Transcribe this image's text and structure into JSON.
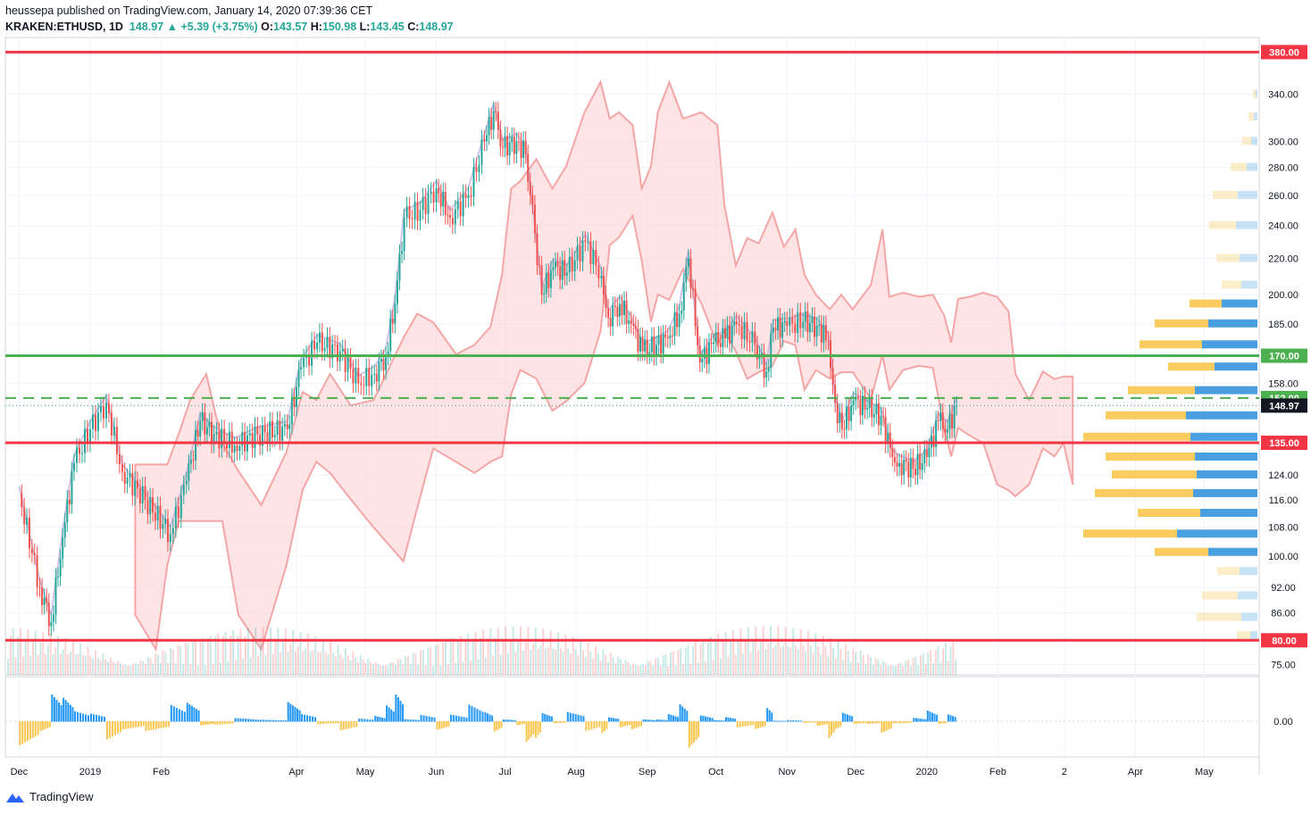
{
  "header": {
    "publisher_line": "heussepa published on TradingView.com, January 14, 2020 07:39:36 CET",
    "symbol": "KRAKEN:ETHUSD, 1D",
    "last": "148.97",
    "change": "+5.39 (+3.75%)",
    "o_label": "O:",
    "o": "143.57",
    "h_label": "H:",
    "h": "150.98",
    "l_label": "L:",
    "l": "143.45",
    "c_label": "C:",
    "c": "148.97"
  },
  "brand": "TradingView",
  "colors": {
    "up": "#26a69a",
    "down": "#ef5350",
    "resistance": "#f23645",
    "support_green": "#4caf50",
    "cloud_bear": "#ffcdd2",
    "cloud_bull": "#c8e6c9",
    "base_line": "#b39ddb",
    "vp_up": "#4a9fe0",
    "vp_down": "#f9c74f",
    "macd_up": "#2196f3",
    "macd_down": "#f9c74f",
    "price_tag_bg": "#131722"
  },
  "chart_data": {
    "type": "candlestick",
    "symbol": "KRAKEN:ETHUSD",
    "interval": "1D",
    "y_scale": "log",
    "ylim": [
      73,
      395
    ],
    "y_ticks": [
      "340.00",
      "300.00",
      "280.00",
      "260.00",
      "240.00",
      "220.00",
      "200.00",
      "185.00",
      "170.00",
      "158.00",
      "148.97",
      "135.00",
      "124.00",
      "116.00",
      "108.00",
      "100.00",
      "92.00",
      "86.00",
      "80.00",
      "75.00"
    ],
    "x_ticks": [
      "Dec",
      "2019",
      "Feb",
      "Apr",
      "May",
      "Jun",
      "Jul",
      "Aug",
      "Sep",
      "Oct",
      "Nov",
      "Dec",
      "2020",
      "Feb",
      "2",
      "Apr",
      "May"
    ],
    "horizontal_levels": [
      {
        "price": 380,
        "label": "380.00",
        "color": "#f23645",
        "style": "solid"
      },
      {
        "price": 170,
        "label": "170.00",
        "color": "#4caf50",
        "style": "solid"
      },
      {
        "price": 152,
        "label": "152.00",
        "color": "#4caf50",
        "style": "dashed"
      },
      {
        "price": 135,
        "label": "135.00",
        "color": "#f23645",
        "style": "solid"
      },
      {
        "price": 80,
        "label": "80.00",
        "color": "#f23645",
        "style": "solid"
      }
    ],
    "last_price": {
      "price": 148.97,
      "label": "148.97"
    },
    "closes": [
      {
        "date": "2018-12-01",
        "close": 118
      },
      {
        "date": "2018-12-10",
        "close": 92
      },
      {
        "date": "2018-12-15",
        "close": 84
      },
      {
        "date": "2018-12-20",
        "close": 105
      },
      {
        "date": "2018-12-25",
        "close": 128
      },
      {
        "date": "2019-01-01",
        "close": 140
      },
      {
        "date": "2019-01-08",
        "close": 150
      },
      {
        "date": "2019-01-15",
        "close": 125
      },
      {
        "date": "2019-01-25",
        "close": 116
      },
      {
        "date": "2019-02-05",
        "close": 106
      },
      {
        "date": "2019-02-12",
        "close": 122
      },
      {
        "date": "2019-02-18",
        "close": 143
      },
      {
        "date": "2019-02-24",
        "close": 138
      },
      {
        "date": "2019-03-05",
        "close": 134
      },
      {
        "date": "2019-03-15",
        "close": 138
      },
      {
        "date": "2019-03-28",
        "close": 140
      },
      {
        "date": "2019-04-03",
        "close": 165
      },
      {
        "date": "2019-04-10",
        "close": 176
      },
      {
        "date": "2019-04-20",
        "close": 172
      },
      {
        "date": "2019-04-28",
        "close": 158
      },
      {
        "date": "2019-05-05",
        "close": 162
      },
      {
        "date": "2019-05-10",
        "close": 170
      },
      {
        "date": "2019-05-14",
        "close": 195
      },
      {
        "date": "2019-05-18",
        "close": 245
      },
      {
        "date": "2019-05-25",
        "close": 250
      },
      {
        "date": "2019-06-01",
        "close": 265
      },
      {
        "date": "2019-06-07",
        "close": 245
      },
      {
        "date": "2019-06-15",
        "close": 260
      },
      {
        "date": "2019-06-22",
        "close": 300
      },
      {
        "date": "2019-06-26",
        "close": 325
      },
      {
        "date": "2019-06-30",
        "close": 295
      },
      {
        "date": "2019-07-06",
        "close": 300
      },
      {
        "date": "2019-07-10",
        "close": 290
      },
      {
        "date": "2019-07-14",
        "close": 235
      },
      {
        "date": "2019-07-17",
        "close": 200
      },
      {
        "date": "2019-07-22",
        "close": 215
      },
      {
        "date": "2019-07-28",
        "close": 212
      },
      {
        "date": "2019-08-05",
        "close": 230
      },
      {
        "date": "2019-08-12",
        "close": 210
      },
      {
        "date": "2019-08-15",
        "close": 188
      },
      {
        "date": "2019-08-20",
        "close": 195
      },
      {
        "date": "2019-08-25",
        "close": 185
      },
      {
        "date": "2019-08-30",
        "close": 172
      },
      {
        "date": "2019-09-05",
        "close": 175
      },
      {
        "date": "2019-09-10",
        "close": 178
      },
      {
        "date": "2019-09-15",
        "close": 190
      },
      {
        "date": "2019-09-19",
        "close": 220
      },
      {
        "date": "2019-09-24",
        "close": 167
      },
      {
        "date": "2019-09-30",
        "close": 176
      },
      {
        "date": "2019-10-05",
        "close": 178
      },
      {
        "date": "2019-10-10",
        "close": 185
      },
      {
        "date": "2019-10-18",
        "close": 175
      },
      {
        "date": "2019-10-23",
        "close": 163
      },
      {
        "date": "2019-10-26",
        "close": 183
      },
      {
        "date": "2019-11-01",
        "close": 184
      },
      {
        "date": "2019-11-08",
        "close": 186
      },
      {
        "date": "2019-11-14",
        "close": 184
      },
      {
        "date": "2019-11-19",
        "close": 177
      },
      {
        "date": "2019-11-22",
        "close": 150
      },
      {
        "date": "2019-11-25",
        "close": 140
      },
      {
        "date": "2019-11-30",
        "close": 151
      },
      {
        "date": "2019-12-06",
        "close": 148
      },
      {
        "date": "2019-12-12",
        "close": 145
      },
      {
        "date": "2019-12-17",
        "close": 130
      },
      {
        "date": "2019-12-20",
        "close": 128
      },
      {
        "date": "2019-12-26",
        "close": 126
      },
      {
        "date": "2020-01-01",
        "close": 130
      },
      {
        "date": "2020-01-06",
        "close": 143
      },
      {
        "date": "2020-01-10",
        "close": 140
      },
      {
        "date": "2020-01-14",
        "close": 148.97
      }
    ],
    "volume_profile": [
      {
        "price": 340,
        "up": 2,
        "down": 3
      },
      {
        "price": 320,
        "up": 4,
        "down": 6
      },
      {
        "price": 300,
        "up": 7,
        "down": 10
      },
      {
        "price": 280,
        "up": 12,
        "down": 18
      },
      {
        "price": 260,
        "up": 22,
        "down": 28
      },
      {
        "price": 240,
        "up": 24,
        "down": 30
      },
      {
        "price": 220,
        "up": 20,
        "down": 26
      },
      {
        "price": 205,
        "up": 18,
        "down": 22
      },
      {
        "price": 195,
        "up": 40,
        "down": 36
      },
      {
        "price": 185,
        "up": 55,
        "down": 60
      },
      {
        "price": 175,
        "up": 62,
        "down": 70
      },
      {
        "price": 165,
        "up": 48,
        "down": 52
      },
      {
        "price": 155,
        "up": 70,
        "down": 75
      },
      {
        "price": 145,
        "up": 80,
        "down": 90
      },
      {
        "price": 137,
        "up": 75,
        "down": 120
      },
      {
        "price": 130,
        "up": 70,
        "down": 100
      },
      {
        "price": 124,
        "up": 68,
        "down": 95
      },
      {
        "price": 118,
        "up": 72,
        "down": 110
      },
      {
        "price": 112,
        "up": 64,
        "down": 70
      },
      {
        "price": 106,
        "up": 90,
        "down": 105
      },
      {
        "price": 101,
        "up": 55,
        "down": 60
      },
      {
        "price": 96,
        "up": 20,
        "down": 25
      },
      {
        "price": 90,
        "up": 22,
        "down": 40
      },
      {
        "price": 85,
        "up": 18,
        "down": 50
      },
      {
        "price": 81,
        "up": 8,
        "down": 15
      }
    ],
    "macd": {
      "zero_label": "0.00"
    }
  }
}
